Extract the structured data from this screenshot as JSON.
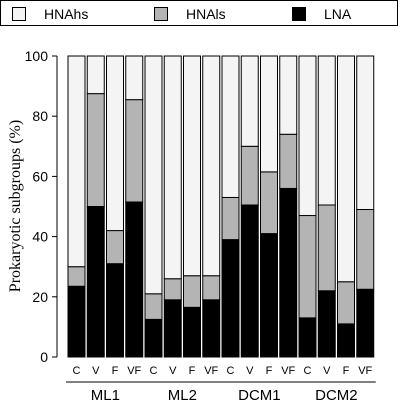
{
  "chart_data": {
    "type": "bar",
    "stacked": true,
    "ylabel": "Prokaryotic subgroups (%)",
    "ylim": [
      0,
      100
    ],
    "yticks": [
      0,
      20,
      40,
      60,
      80,
      100
    ],
    "categories": [
      "C",
      "V",
      "F",
      "VF",
      "C",
      "V",
      "F",
      "VF",
      "C",
      "V",
      "F",
      "VF",
      "C",
      "V",
      "F",
      "VF"
    ],
    "groups": [
      "ML1",
      "ML2",
      "DCM1",
      "DCM2"
    ],
    "series": [
      {
        "name": "LNA",
        "color": "#000000",
        "values": [
          23.5,
          50.0,
          31.0,
          51.5,
          12.5,
          19.0,
          16.5,
          19.0,
          39.0,
          50.5,
          41.0,
          56.0,
          13.0,
          22.0,
          11.0,
          22.5
        ]
      },
      {
        "name": "HNAls",
        "color": "#b4b4b4",
        "values": [
          6.5,
          37.5,
          11.0,
          34.0,
          8.5,
          7.0,
          10.5,
          8.0,
          14.0,
          19.5,
          20.5,
          18.0,
          34.0,
          28.5,
          14.0,
          26.5
        ]
      },
      {
        "name": "HNAhs",
        "color": "#f4f4f4",
        "values": [
          70.0,
          12.5,
          58.0,
          14.5,
          79.0,
          74.0,
          73.0,
          73.0,
          47.0,
          30.0,
          38.5,
          26.0,
          53.0,
          49.5,
          75.0,
          51.0
        ]
      }
    ],
    "legend": {
      "position": "top",
      "order": [
        "HNAhs",
        "HNAls",
        "LNA"
      ]
    },
    "grid": false
  }
}
